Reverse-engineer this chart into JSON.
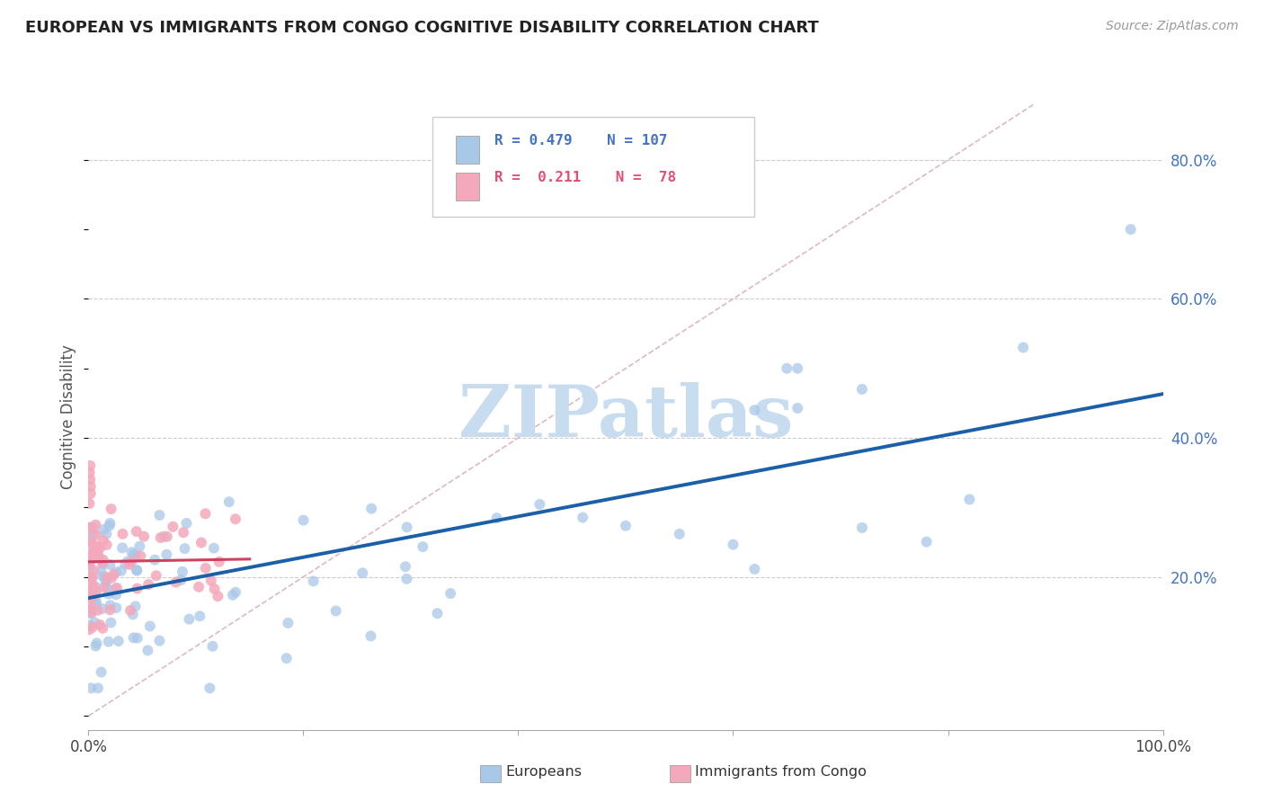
{
  "title": "EUROPEAN VS IMMIGRANTS FROM CONGO COGNITIVE DISABILITY CORRELATION CHART",
  "source": "Source: ZipAtlas.com",
  "ylabel": "Cognitive Disability",
  "xlim": [
    0.0,
    1.0
  ],
  "ylim": [
    -0.02,
    0.88
  ],
  "blue_color": "#A8C8E8",
  "pink_color": "#F4A8BB",
  "blue_line_color": "#1B5FA8",
  "pink_line_color": "#D04060",
  "diag_line_color": "#DDB8C8",
  "grid_color": "#CCCCCC",
  "watermark_color": "#C8DCF0",
  "legend_R_blue": "0.479",
  "legend_N_blue": "107",
  "legend_R_pink": "0.211",
  "legend_N_pink": "78",
  "legend_label_blue": "Europeans",
  "legend_label_pink": "Immigrants from Congo",
  "ytick_vals": [
    0.2,
    0.4,
    0.6,
    0.8
  ],
  "ytick_labels": [
    "20.0%",
    "40.0%",
    "60.0%",
    "80.0%"
  ],
  "title_color": "#222222",
  "source_color": "#999999",
  "tick_label_color": "#4472C4",
  "legend_text_blue": "#4472C4",
  "legend_text_pink": "#E05070"
}
